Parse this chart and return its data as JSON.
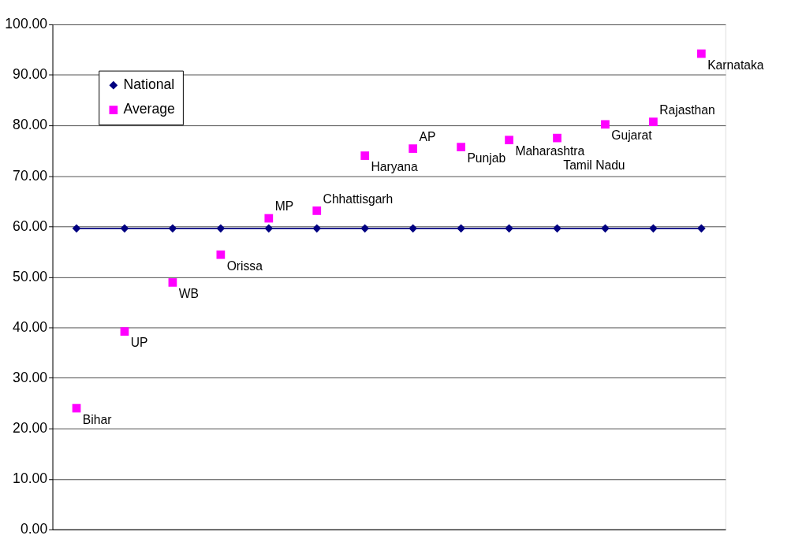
{
  "chart_data": {
    "type": "line",
    "categories": [
      null,
      null,
      null,
      null,
      null,
      null,
      null,
      null,
      null,
      null,
      null,
      null,
      null,
      null
    ],
    "series": [
      {
        "name": "National",
        "marker": "diamond",
        "color": "#000080",
        "values": [
          59.6,
          59.6,
          59.6,
          59.6,
          59.6,
          59.6,
          59.6,
          59.6,
          59.6,
          59.6,
          59.6,
          59.6,
          59.6,
          59.6
        ]
      },
      {
        "name": "Average",
        "type": "scatter",
        "marker": "square",
        "color": "#ff00ff",
        "values": [
          24.0,
          39.2,
          48.9,
          54.4,
          61.6,
          63.1,
          74.0,
          75.4,
          75.7,
          77.1,
          77.5,
          80.2,
          80.7,
          94.2
        ],
        "value_labels": [
          "Bihar",
          "UP",
          "WB",
          "Orissa",
          "MP",
          "Chhattisgarh",
          "Haryana",
          "AP",
          "Punjab",
          "Maharashtra",
          "Tamil Nadu",
          "Gujarat",
          "Rajasthan",
          "Karnataka"
        ]
      }
    ],
    "ylim": [
      0,
      100
    ],
    "yticks": [
      {
        "value": 0,
        "label": "0.00"
      },
      {
        "value": 10,
        "label": "10.00"
      },
      {
        "value": 20,
        "label": "20.00"
      },
      {
        "value": 30,
        "label": "30.00"
      },
      {
        "value": 40,
        "label": "40.00"
      },
      {
        "value": 50,
        "label": "50.00"
      },
      {
        "value": 60,
        "label": "60.00"
      },
      {
        "value": 70,
        "label": "70.00"
      },
      {
        "value": 80,
        "label": "80.00"
      },
      {
        "value": 90,
        "label": "90.00"
      },
      {
        "value": 100,
        "label": "100.00"
      }
    ],
    "grid": "y",
    "legend": "top left"
  }
}
